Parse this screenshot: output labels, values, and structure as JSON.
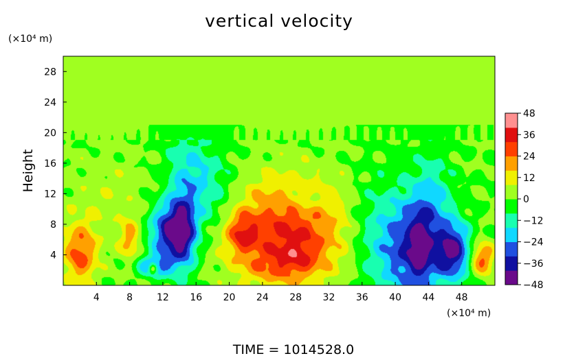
{
  "chart_data": {
    "type": "heatmap",
    "title": "vertical velocity",
    "ylabel": "Height",
    "y_units": "(×10⁴ m)",
    "x_units": "(×10⁴ m)",
    "footer": "TIME  =  1014528.0",
    "xlim": [
      0,
      52
    ],
    "ylim": [
      0,
      30
    ],
    "xticks": [
      4,
      8,
      12,
      16,
      20,
      24,
      28,
      32,
      36,
      40,
      44,
      48
    ],
    "yticks": [
      4,
      8,
      12,
      16,
      20,
      24,
      28
    ],
    "colorbar": {
      "min": -48,
      "max": 48,
      "ticks": [
        48,
        36,
        24,
        12,
        0,
        -12,
        -24,
        -36,
        -48
      ],
      "colors": [
        "#6a0a8a",
        "#1010a0",
        "#2050e0",
        "#10d8ff",
        "#18ffb0",
        "#00ff00",
        "#a0ff20",
        "#f0f000",
        "#ffa000",
        "#ff4000",
        "#e01010",
        "#ff9090"
      ]
    },
    "features": [
      {
        "x": 27,
        "y": 7,
        "sx": 5.0,
        "sy": 4.8,
        "v": 32
      },
      {
        "x": 21.5,
        "y": 6.8,
        "sx": 1.3,
        "sy": 1.8,
        "v": 20
      },
      {
        "x": 28.5,
        "y": 3.5,
        "sx": 1.8,
        "sy": 1.8,
        "v": 10
      },
      {
        "x": 25,
        "y": 2.5,
        "sx": 2.5,
        "sy": 1.5,
        "v": 8
      },
      {
        "x": 29,
        "y": 11,
        "sx": 1.5,
        "sy": 1.2,
        "v": -10
      },
      {
        "x": 42,
        "y": 5,
        "sx": 3.0,
        "sy": 5.0,
        "v": -34
      },
      {
        "x": 43,
        "y": 5,
        "sx": 0.9,
        "sy": 3.5,
        "v": -16
      },
      {
        "x": 47,
        "y": 4.5,
        "sx": 1.4,
        "sy": 2.5,
        "v": -36
      },
      {
        "x": 2,
        "y": 4,
        "sx": 1.4,
        "sy": 2.8,
        "v": 26
      },
      {
        "x": 50.5,
        "y": 3.5,
        "sx": 1.0,
        "sy": 1.5,
        "v": 28
      },
      {
        "x": 8,
        "y": 6,
        "sx": 0.8,
        "sy": 1.8,
        "v": 18
      },
      {
        "x": 12.5,
        "y": 7,
        "sx": 1.5,
        "sy": 2.5,
        "v": -34
      },
      {
        "x": 14.5,
        "y": 7,
        "sx": 1.2,
        "sy": 3.5,
        "v": -36
      },
      {
        "x": 15,
        "y": 15,
        "sx": 2.0,
        "sy": 4.0,
        "v": -14
      },
      {
        "x": 11,
        "y": 2.5,
        "sx": 1.5,
        "sy": 1.0,
        "v": -26
      },
      {
        "x": 10.8,
        "y": 2.2,
        "sx": 0.4,
        "sy": 0.5,
        "v": 30
      },
      {
        "x": 5,
        "y": 11,
        "sx": 4.0,
        "sy": 5.0,
        "v": 6
      },
      {
        "x": 37,
        "y": 7,
        "sx": 2.0,
        "sy": 5.0,
        "v": -8
      },
      {
        "x": 44.5,
        "y": 12,
        "sx": 1.5,
        "sy": 4.0,
        "v": -12
      },
      {
        "x": 18,
        "y": 12,
        "sx": 2.0,
        "sy": 4.0,
        "v": -12
      }
    ]
  }
}
